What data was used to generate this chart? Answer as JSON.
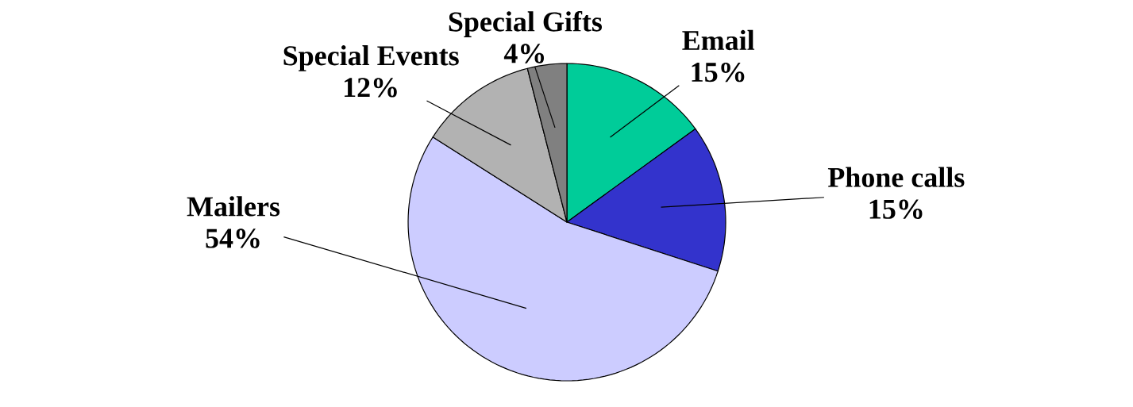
{
  "chart_data": {
    "type": "pie",
    "categories": [
      "Email",
      "Phone calls",
      "Mailers",
      "Special Events",
      "Special Gifts"
    ],
    "values": [
      15,
      15,
      54,
      12,
      4
    ],
    "value_labels": [
      "15%",
      "15%",
      "54%",
      "12%",
      "4%"
    ],
    "colors": [
      "#00cc99",
      "#3333cc",
      "#ccccff",
      "#b2b2b2",
      "#808080"
    ]
  }
}
